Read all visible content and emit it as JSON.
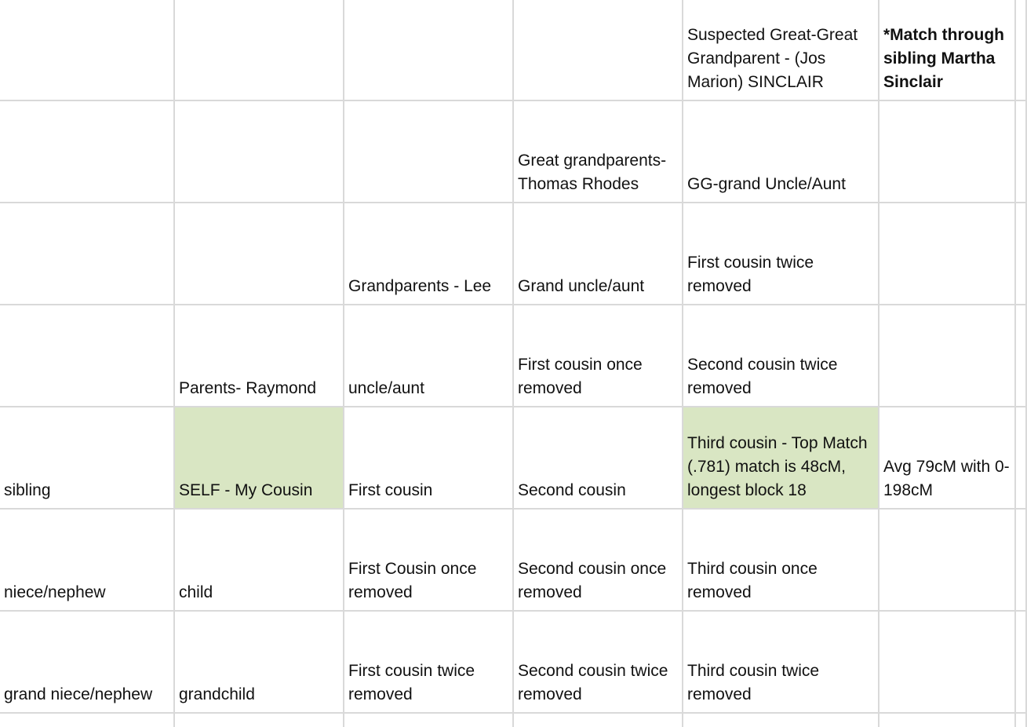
{
  "highlight_color": "#d9e6c3",
  "gridline_color": "#d9d9d9",
  "rows": [
    {
      "cells": [
        {
          "text": ""
        },
        {
          "text": ""
        },
        {
          "text": ""
        },
        {
          "text": ""
        },
        {
          "text": "Suspected Great-Great Grandparent - (Jos Marion) SINCLAIR"
        },
        {
          "text": "*Match through sibling Martha Sinclair"
        },
        {
          "text": ""
        }
      ]
    },
    {
      "cells": [
        {
          "text": ""
        },
        {
          "text": ""
        },
        {
          "text": ""
        },
        {
          "text": "Great grandparents- Thomas Rhodes"
        },
        {
          "text": "GG-grand Uncle/Aunt"
        },
        {
          "text": ""
        },
        {
          "text": ""
        }
      ]
    },
    {
      "cells": [
        {
          "text": ""
        },
        {
          "text": ""
        },
        {
          "text": "Grandparents - Lee"
        },
        {
          "text": "Grand uncle/aunt"
        },
        {
          "text": "First cousin twice removed"
        },
        {
          "text": ""
        },
        {
          "text": ""
        }
      ]
    },
    {
      "cells": [
        {
          "text": ""
        },
        {
          "text": "Parents- Raymond"
        },
        {
          "text": "uncle/aunt"
        },
        {
          "text": "First cousin once removed"
        },
        {
          "text": "Second cousin twice removed"
        },
        {
          "text": ""
        },
        {
          "text": ""
        }
      ]
    },
    {
      "cells": [
        {
          "text": "sibling"
        },
        {
          "text": "SELF - My Cousin",
          "highlight": true
        },
        {
          "text": "First cousin"
        },
        {
          "text": "Second cousin"
        },
        {
          "text": "Third cousin - Top Match (.781) match is 48cM, longest block 18",
          "highlight": true
        },
        {
          "text": "Avg 79cM with 0-198cM"
        },
        {
          "text": ""
        }
      ]
    },
    {
      "cells": [
        {
          "text": "niece/nephew"
        },
        {
          "text": "child"
        },
        {
          "text": "First Cousin once removed"
        },
        {
          "text": "Second cousin once removed"
        },
        {
          "text": "Third cousin once removed"
        },
        {
          "text": ""
        },
        {
          "text": ""
        }
      ]
    },
    {
      "cells": [
        {
          "text": "grand niece/nephew"
        },
        {
          "text": "grandchild"
        },
        {
          "text": "First cousin twice removed"
        },
        {
          "text": "Second cousin twice removed"
        },
        {
          "text": "Third cousin twice removed"
        },
        {
          "text": ""
        },
        {
          "text": ""
        }
      ]
    }
  ]
}
